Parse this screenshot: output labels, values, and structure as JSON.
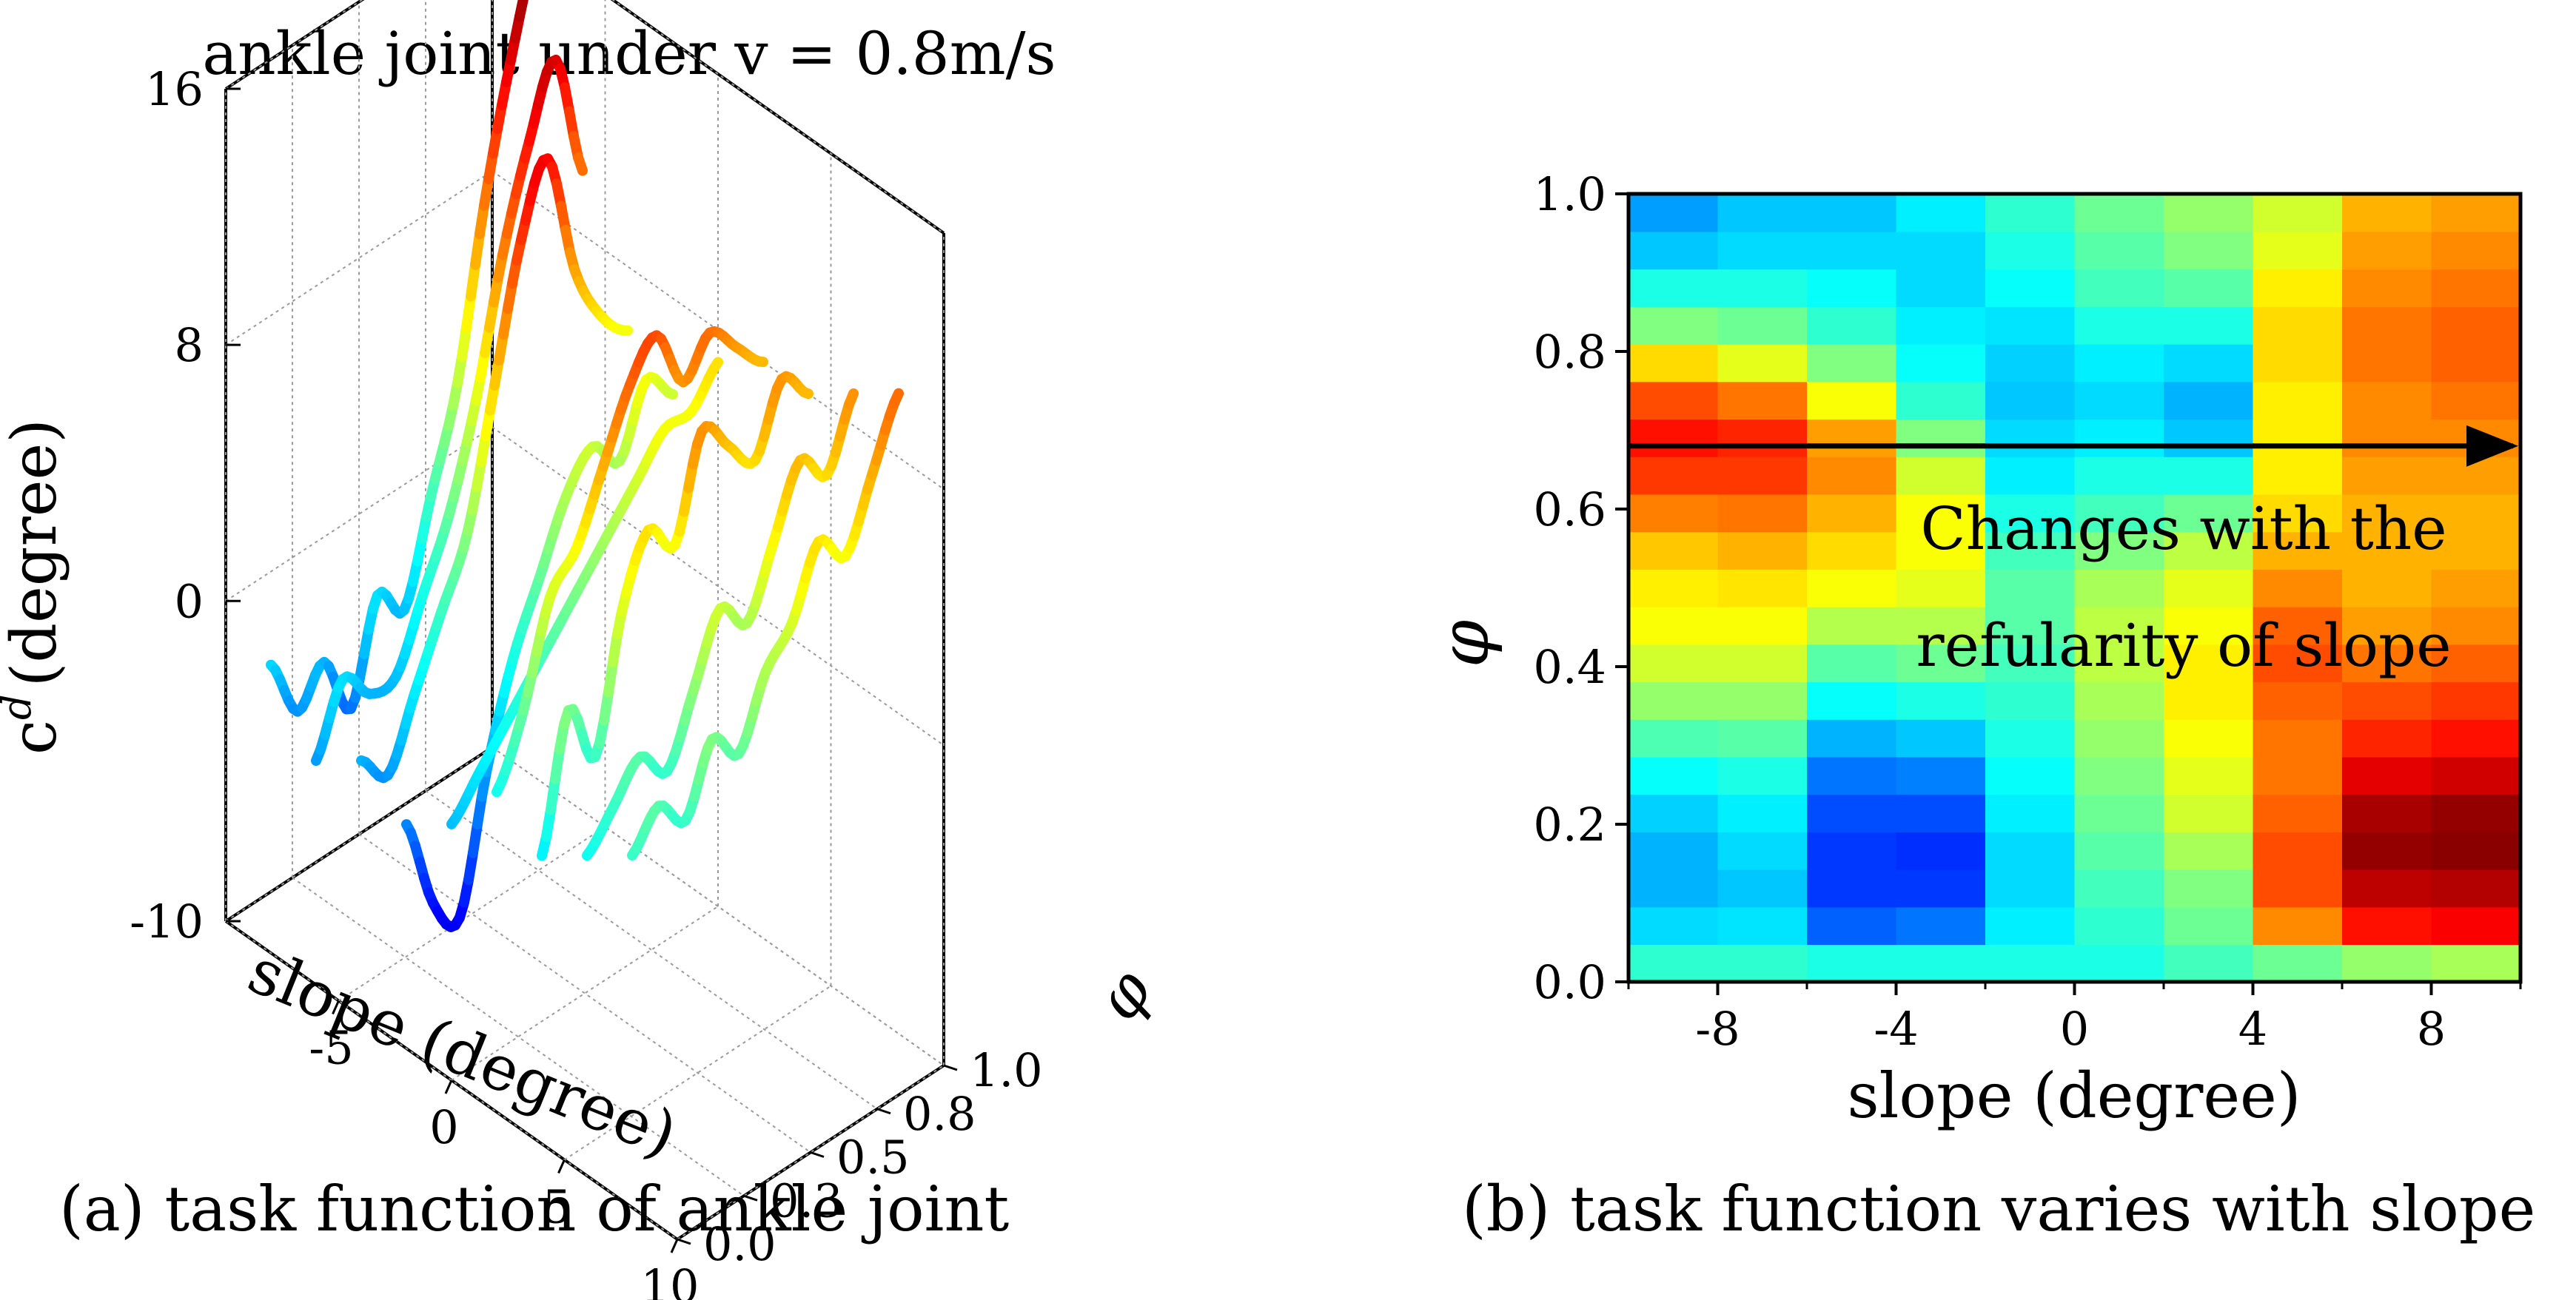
{
  "chart_data": [
    {
      "id": "a",
      "type": "3d_line",
      "title": "ankle joint under v = 0.8m/s",
      "xlabel": "slope (degree)",
      "ylabel": "φ",
      "zlabel": "c^d (degree)",
      "zlabel_main": "c",
      "zlabel_sup": "d",
      "zlabel_unit": "(degree)",
      "x_ticks": [
        "-5",
        "0",
        "5",
        "10"
      ],
      "y_ticks": [
        "0.0",
        "0.3",
        "0.5",
        "0.8",
        "1.0"
      ],
      "z_ticks": [
        "16",
        "8",
        "0",
        "-10"
      ],
      "xlim": [
        -10,
        10
      ],
      "ylim": [
        0,
        1
      ],
      "zlim": [
        -10,
        16
      ],
      "x_tick_values": [
        -5,
        0,
        5,
        10
      ],
      "y_tick_values": [
        0,
        0.25,
        0.5,
        0.75,
        1.0
      ],
      "z_tick_values": [
        16,
        8,
        0,
        -10
      ],
      "colormap": "jet",
      "grid": true,
      "series": [
        {
          "slope": -8,
          "phi": [
            0.0,
            0.1,
            0.2,
            0.3,
            0.4,
            0.5,
            0.6,
            0.7,
            0.8,
            0.9,
            1.0
          ],
          "values": [
            -1,
            -3,
            -2,
            -4,
            -1,
            -2,
            1,
            4,
            9,
            13,
            16
          ]
        },
        {
          "slope": -6,
          "phi": [
            0.0,
            0.1,
            0.2,
            0.3,
            0.4,
            0.5,
            0.6,
            0.7,
            0.8,
            0.9,
            1.0
          ],
          "values": [
            -3,
            -1,
            -2,
            -2,
            0,
            2,
            5,
            9,
            12,
            14,
            10
          ]
        },
        {
          "slope": -4,
          "phi": [
            0.0,
            0.1,
            0.2,
            0.3,
            0.4,
            0.5,
            0.6,
            0.7,
            0.8,
            0.9,
            1.0
          ],
          "values": [
            -2,
            -3,
            -1,
            1,
            3,
            7,
            11,
            13,
            9,
            7,
            6
          ]
        },
        {
          "slope": -2,
          "phi": [
            0.0,
            0.1,
            0.2,
            0.3,
            0.4,
            0.5,
            0.6,
            0.7,
            0.8,
            0.9,
            1.0
          ],
          "values": [
            -3,
            -6,
            -7,
            -3,
            0,
            2,
            4,
            5,
            4,
            6,
            5
          ]
        },
        {
          "slope": 0,
          "phi": [
            0.0,
            0.1,
            0.2,
            0.3,
            0.4,
            0.5,
            0.6,
            0.7,
            0.8,
            0.9,
            1.0
          ],
          "values": [
            -2,
            -1,
            0,
            1,
            2,
            3,
            4,
            5,
            6,
            6,
            7
          ]
        },
        {
          "slope": 2,
          "phi": [
            0.0,
            0.1,
            0.2,
            0.3,
            0.4,
            0.5,
            0.6,
            0.7,
            0.8,
            0.9,
            1.0
          ],
          "values": [
            0,
            2,
            5,
            6,
            8,
            10,
            11,
            9,
            10,
            9,
            8
          ]
        },
        {
          "slope": 4,
          "phi": [
            0.0,
            0.1,
            0.2,
            0.3,
            0.4,
            0.5,
            0.6,
            0.7,
            0.8,
            0.9,
            1.0
          ],
          "values": [
            -1,
            3,
            1,
            5,
            7,
            6,
            9,
            8,
            7,
            9,
            8
          ]
        },
        {
          "slope": 6,
          "phi": [
            0.0,
            0.1,
            0.2,
            0.3,
            0.4,
            0.5,
            0.6,
            0.7,
            0.8,
            0.9,
            1.0
          ],
          "values": [
            0,
            1,
            2,
            1,
            3,
            5,
            4,
            6,
            8,
            7,
            9
          ]
        },
        {
          "slope": 8,
          "phi": [
            0.0,
            0.1,
            0.2,
            0.3,
            0.4,
            0.5,
            0.6,
            0.7,
            0.8,
            0.9,
            1.0
          ],
          "values": [
            1,
            2,
            1,
            3,
            2,
            4,
            5,
            7,
            6,
            8,
            10
          ]
        }
      ],
      "caption": "(a) task function of ankle joint"
    },
    {
      "id": "b",
      "type": "heatmap",
      "xlabel": "slope (degree)",
      "ylabel": "φ",
      "x_ticks": [
        "-8",
        "-4",
        "0",
        "4",
        "8"
      ],
      "x_tick_values": [
        -8,
        -4,
        0,
        4,
        8
      ],
      "y_ticks": [
        "0.0",
        "0.2",
        "0.4",
        "0.6",
        "0.8",
        "1.0"
      ],
      "y_tick_values": [
        0.0,
        0.2,
        0.4,
        0.6,
        0.8,
        1.0
      ],
      "xlim": [
        -10,
        10
      ],
      "ylim": [
        0,
        1
      ],
      "colormap": "jet",
      "color_range": [
        0,
        1
      ],
      "columns": [
        {
          "slope": -9,
          "values": [
            0.42,
            0.34,
            0.3,
            0.3,
            0.33,
            0.38,
            0.45,
            0.52,
            0.58,
            0.62,
            0.64,
            0.68,
            0.75,
            0.82,
            0.86,
            0.8,
            0.66,
            0.5,
            0.4,
            0.32,
            0.28
          ]
        },
        {
          "slope": -7,
          "values": [
            0.42,
            0.35,
            0.32,
            0.34,
            0.36,
            0.4,
            0.46,
            0.52,
            0.58,
            0.62,
            0.65,
            0.7,
            0.76,
            0.82,
            0.84,
            0.76,
            0.6,
            0.48,
            0.4,
            0.34,
            0.32
          ]
        },
        {
          "slope": -5,
          "values": [
            0.4,
            0.22,
            0.18,
            0.18,
            0.2,
            0.24,
            0.3,
            0.38,
            0.46,
            0.55,
            0.62,
            0.66,
            0.7,
            0.74,
            0.72,
            0.62,
            0.5,
            0.42,
            0.38,
            0.34,
            0.32
          ]
        },
        {
          "slope": -3,
          "values": [
            0.4,
            0.24,
            0.18,
            0.17,
            0.2,
            0.25,
            0.32,
            0.4,
            0.48,
            0.55,
            0.6,
            0.62,
            0.62,
            0.58,
            0.5,
            0.42,
            0.38,
            0.36,
            0.34,
            0.34,
            0.36
          ]
        },
        {
          "slope": -1,
          "values": [
            0.4,
            0.36,
            0.34,
            0.34,
            0.36,
            0.38,
            0.4,
            0.42,
            0.44,
            0.46,
            0.46,
            0.44,
            0.4,
            0.36,
            0.34,
            0.32,
            0.33,
            0.35,
            0.38,
            0.4,
            0.42
          ]
        },
        {
          "slope": 1,
          "values": [
            0.4,
            0.42,
            0.44,
            0.46,
            0.48,
            0.5,
            0.52,
            0.54,
            0.56,
            0.56,
            0.54,
            0.5,
            0.44,
            0.4,
            0.36,
            0.34,
            0.36,
            0.4,
            0.44,
            0.46,
            0.48
          ]
        },
        {
          "slope": 3,
          "values": [
            0.44,
            0.48,
            0.5,
            0.54,
            0.58,
            0.6,
            0.62,
            0.64,
            0.64,
            0.62,
            0.6,
            0.56,
            0.48,
            0.4,
            0.32,
            0.3,
            0.34,
            0.4,
            0.46,
            0.5,
            0.52
          ]
        },
        {
          "slope": 5,
          "values": [
            0.48,
            0.74,
            0.8,
            0.8,
            0.78,
            0.76,
            0.76,
            0.78,
            0.8,
            0.78,
            0.74,
            0.7,
            0.66,
            0.64,
            0.64,
            0.64,
            0.66,
            0.66,
            0.64,
            0.6,
            0.58
          ]
        },
        {
          "slope": 7,
          "values": [
            0.52,
            0.86,
            0.94,
            0.98,
            0.96,
            0.9,
            0.84,
            0.8,
            0.76,
            0.72,
            0.7,
            0.7,
            0.7,
            0.72,
            0.74,
            0.74,
            0.76,
            0.76,
            0.74,
            0.72,
            0.7
          ]
        },
        {
          "slope": 9,
          "values": [
            0.54,
            0.88,
            0.95,
            0.99,
            0.98,
            0.92,
            0.86,
            0.82,
            0.78,
            0.74,
            0.72,
            0.7,
            0.7,
            0.72,
            0.74,
            0.76,
            0.78,
            0.78,
            0.76,
            0.74,
            0.72
          ]
        }
      ],
      "annotation_arrow": {
        "phi": 0.68,
        "from_slope": -10,
        "to_slope": 10
      },
      "annotation": [
        "Changes with the",
        "refularity of slope"
      ],
      "caption": "(b) task function varies with slope"
    }
  ]
}
